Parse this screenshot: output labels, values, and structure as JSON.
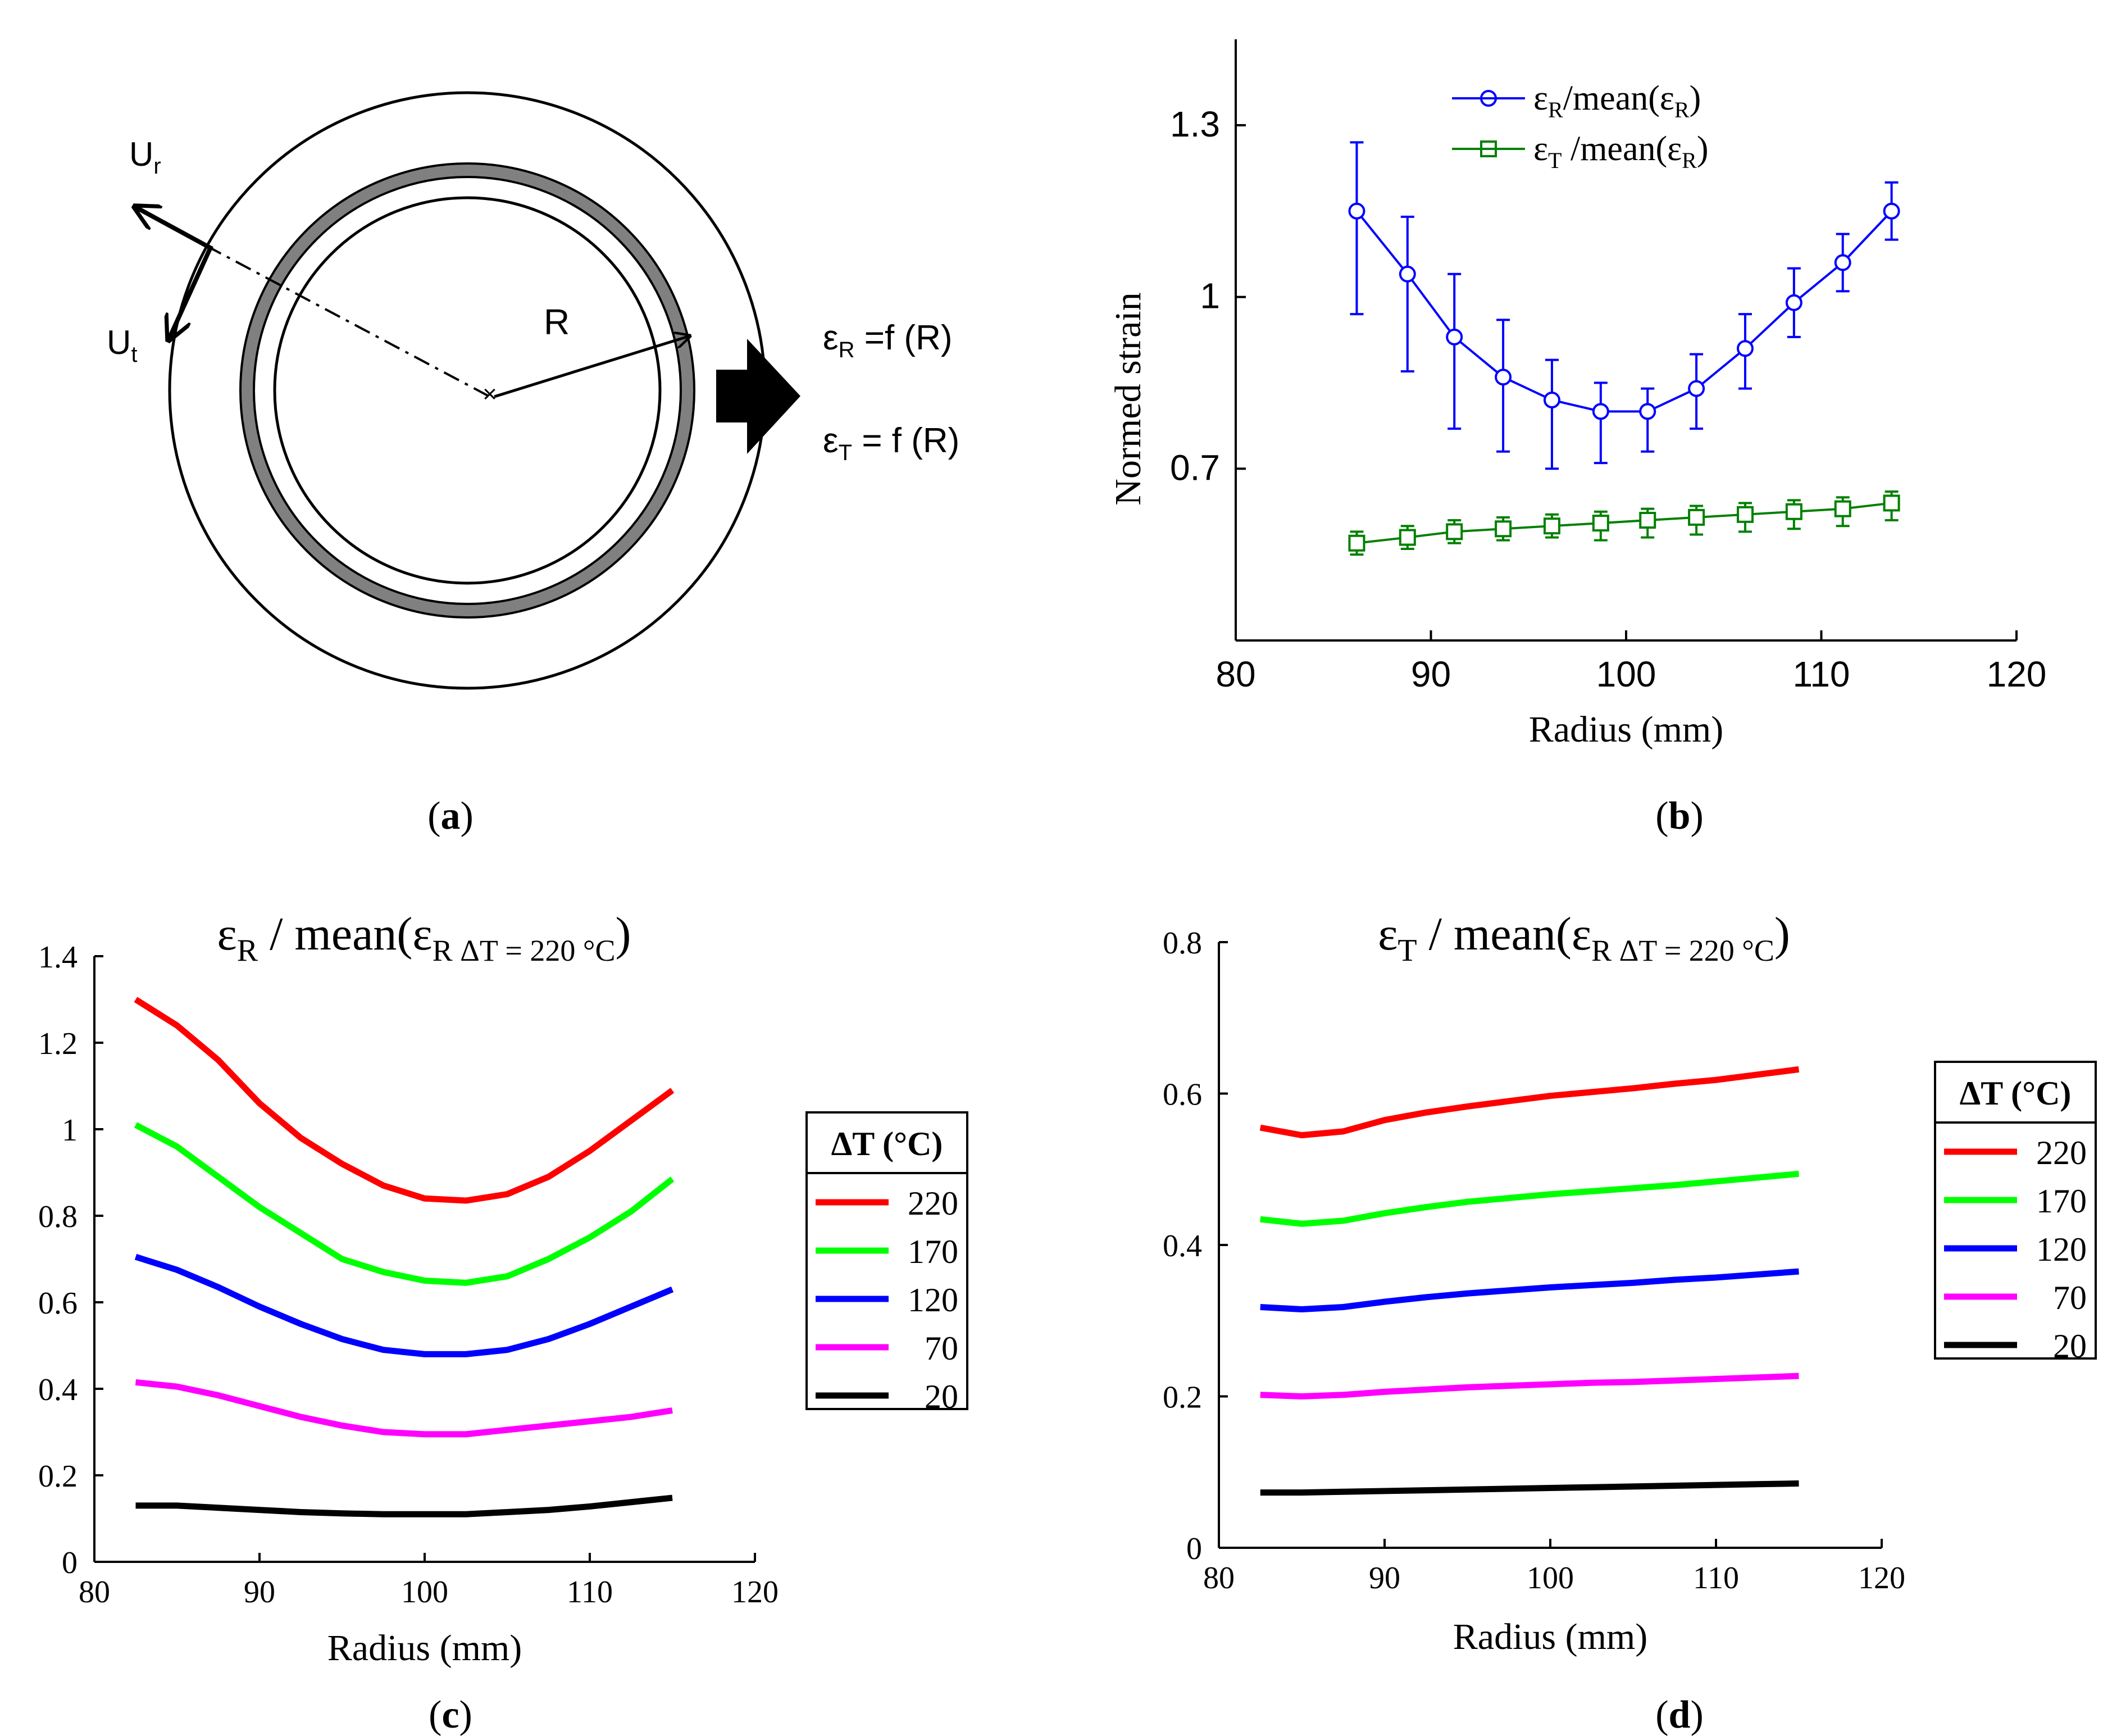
{
  "panel_a": {
    "label": "a",
    "ur": "U",
    "ur_sub": "r",
    "ut": "U",
    "ut_sub": "t",
    "r": "R",
    "eq1_sym": "ε",
    "eq1_sub": "R",
    "eq1_rhs": "=f (R)",
    "eq2_sym": "ε",
    "eq2_sub": "T",
    "eq2_rhs": "= f (R)",
    "colors": {
      "ring": "#808080"
    }
  },
  "chart_data": [
    {
      "id": "b",
      "type": "line",
      "panel_label": "b",
      "xlabel": "Radius (mm)",
      "ylabel": "Normed strain",
      "xlim": [
        80,
        120
      ],
      "ylim": [
        0.4,
        1.45
      ],
      "xticks": [
        80,
        90,
        100,
        110,
        120
      ],
      "yticks": [
        0.7,
        1,
        1.3
      ],
      "ytick_labels": [
        "0.7",
        "1",
        "1.3"
      ],
      "legend": {
        "position": "top-center",
        "entries": [
          {
            "sym": "ε",
            "sub": "R",
            "mid": "/mean(",
            "sym2": "ε",
            "sub2": "R",
            "end": ")"
          },
          {
            "sym": "ε",
            "sub": "T",
            "mid": " /mean(",
            "sym2": "ε",
            "sub2": "R",
            "end": ")"
          }
        ]
      },
      "series": [
        {
          "name": "εR/mean(εR)",
          "color": "#0000ff",
          "marker": "circle",
          "x": [
            86.2,
            88.8,
            91.2,
            93.7,
            96.2,
            98.7,
            101.1,
            103.6,
            106.1,
            108.6,
            111.1,
            113.6
          ],
          "values": [
            1.15,
            1.04,
            0.93,
            0.86,
            0.82,
            0.8,
            0.8,
            0.84,
            0.91,
            0.99,
            1.06,
            1.15
          ],
          "err_low": [
            0.18,
            0.17,
            0.16,
            0.13,
            0.12,
            0.09,
            0.07,
            0.07,
            0.07,
            0.06,
            0.05,
            0.05
          ],
          "err_high": [
            0.12,
            0.1,
            0.11,
            0.1,
            0.07,
            0.05,
            0.04,
            0.06,
            0.06,
            0.06,
            0.05,
            0.05
          ]
        },
        {
          "name": "εT/mean(εR)",
          "color": "#008000",
          "marker": "square",
          "x": [
            86.2,
            88.8,
            91.2,
            93.7,
            96.2,
            98.7,
            101.1,
            103.6,
            106.1,
            108.6,
            111.1,
            113.6
          ],
          "values": [
            0.57,
            0.58,
            0.59,
            0.595,
            0.6,
            0.605,
            0.61,
            0.615,
            0.62,
            0.625,
            0.63,
            0.64
          ],
          "err_low": [
            0.02,
            0.02,
            0.02,
            0.02,
            0.02,
            0.03,
            0.03,
            0.03,
            0.03,
            0.03,
            0.03,
            0.03
          ],
          "err_high": [
            0.02,
            0.02,
            0.02,
            0.02,
            0.02,
            0.02,
            0.02,
            0.02,
            0.02,
            0.02,
            0.02,
            0.02
          ]
        }
      ]
    },
    {
      "id": "c",
      "type": "line",
      "panel_label": "c",
      "title_sym": "ε",
      "title_sub": "R",
      "title_mid": " / mean(",
      "title_sym2": "ε",
      "title_sub2": "R ΔT = 220 °C",
      "title_end": ")",
      "xlabel": "Radius (mm)",
      "ylabel": "",
      "xlim": [
        80,
        120
      ],
      "ylim": [
        0,
        1.4
      ],
      "xticks": [
        80,
        90,
        100,
        110,
        120
      ],
      "yticks": [
        0,
        0.2,
        0.4,
        0.6,
        0.8,
        1,
        1.2,
        1.4
      ],
      "ytick_labels": [
        "0",
        "0.2",
        "0.4",
        "0.6",
        "0.8",
        "1",
        "1.2",
        "1.4"
      ],
      "legend": {
        "title": "ΔT (°C)",
        "position": "right"
      },
      "x": [
        82.5,
        85,
        87.5,
        90,
        92.5,
        95,
        97.5,
        100,
        102.5,
        105,
        107.5,
        110,
        112.5,
        115
      ],
      "series": [
        {
          "name": "220",
          "color": "#ff0000",
          "values": [
            1.3,
            1.24,
            1.16,
            1.06,
            0.98,
            0.92,
            0.87,
            0.84,
            0.835,
            0.85,
            0.89,
            0.95,
            1.02,
            1.09
          ]
        },
        {
          "name": "170",
          "color": "#00ff00",
          "values": [
            1.01,
            0.96,
            0.89,
            0.82,
            0.76,
            0.7,
            0.67,
            0.65,
            0.645,
            0.66,
            0.7,
            0.75,
            0.81,
            0.885
          ]
        },
        {
          "name": "120",
          "color": "#0000ff",
          "values": [
            0.705,
            0.675,
            0.635,
            0.59,
            0.55,
            0.515,
            0.49,
            0.48,
            0.48,
            0.49,
            0.515,
            0.55,
            0.59,
            0.63
          ]
        },
        {
          "name": "70",
          "color": "#ff00ff",
          "values": [
            0.415,
            0.405,
            0.385,
            0.36,
            0.335,
            0.315,
            0.3,
            0.295,
            0.295,
            0.305,
            0.315,
            0.325,
            0.335,
            0.35
          ]
        },
        {
          "name": "20",
          "color": "#000000",
          "values": [
            0.13,
            0.13,
            0.125,
            0.12,
            0.115,
            0.112,
            0.11,
            0.11,
            0.11,
            0.115,
            0.12,
            0.128,
            0.138,
            0.148
          ]
        }
      ]
    },
    {
      "id": "d",
      "type": "line",
      "panel_label": "d",
      "title_sym": "ε",
      "title_sub": "T",
      "title_mid": " / mean(",
      "title_sym2": "ε",
      "title_sub2": "R ΔT = 220 °C",
      "title_end": ")",
      "xlabel": "Radius (mm)",
      "ylabel": "",
      "xlim": [
        80,
        120
      ],
      "ylim": [
        0,
        0.8
      ],
      "xticks": [
        80,
        90,
        100,
        110,
        120
      ],
      "yticks": [
        0,
        0.2,
        0.4,
        0.6,
        0.8
      ],
      "ytick_labels": [
        "0",
        "0.2",
        "0.4",
        "0.6",
        "0.8"
      ],
      "legend": {
        "title": "ΔT (°C)",
        "position": "right"
      },
      "x": [
        82.5,
        85,
        87.5,
        90,
        92.5,
        95,
        97.5,
        100,
        102.5,
        105,
        107.5,
        110,
        112.5,
        115
      ],
      "series": [
        {
          "name": "220",
          "color": "#ff0000",
          "values": [
            0.555,
            0.545,
            0.55,
            0.565,
            0.575,
            0.583,
            0.59,
            0.597,
            0.602,
            0.607,
            0.613,
            0.618,
            0.625,
            0.632
          ]
        },
        {
          "name": "170",
          "color": "#00ff00",
          "values": [
            0.434,
            0.428,
            0.432,
            0.442,
            0.45,
            0.457,
            0.462,
            0.467,
            0.471,
            0.475,
            0.479,
            0.484,
            0.489,
            0.494
          ]
        },
        {
          "name": "120",
          "color": "#0000ff",
          "values": [
            0.318,
            0.315,
            0.318,
            0.325,
            0.331,
            0.336,
            0.34,
            0.344,
            0.347,
            0.35,
            0.354,
            0.357,
            0.361,
            0.365
          ]
        },
        {
          "name": "70",
          "color": "#ff00ff",
          "values": [
            0.202,
            0.2,
            0.202,
            0.206,
            0.209,
            0.212,
            0.214,
            0.216,
            0.218,
            0.219,
            0.221,
            0.223,
            0.225,
            0.227
          ]
        },
        {
          "name": "20",
          "color": "#000000",
          "values": [
            0.073,
            0.073,
            0.074,
            0.075,
            0.076,
            0.077,
            0.078,
            0.079,
            0.08,
            0.081,
            0.082,
            0.083,
            0.084,
            0.085
          ]
        }
      ]
    }
  ]
}
